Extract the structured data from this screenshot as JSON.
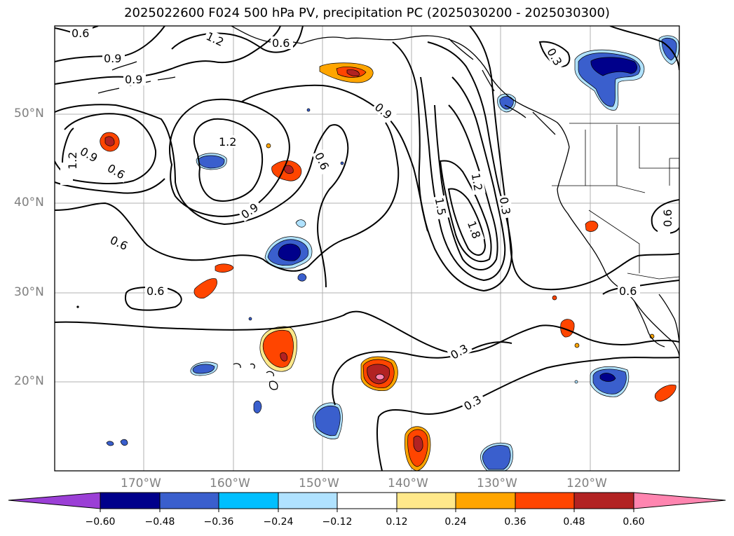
{
  "title": "2025022600 F024 500 hPa PV, precipitation PC (2025030200 - 2025030300)",
  "lat_labels": [
    "50°N",
    "40°N",
    "30°N",
    "20°N"
  ],
  "lon_labels": [
    "170°W",
    "160°W",
    "150°W",
    "140°W",
    "130°W",
    "120°W"
  ],
  "contour_labels": [
    "0.6",
    "0.9",
    "0.9",
    "1.2",
    "0.6",
    "1.2",
    "0.9",
    "0.6",
    "1.2",
    "0.9",
    "0.6",
    "0.6",
    "0.6",
    "0.9",
    "0.6",
    "1.5",
    "1.2",
    "1.8",
    "0.3",
    "0.3",
    "0.3",
    "0.3",
    "0.6",
    "0.6"
  ],
  "colorbar": {
    "colors": [
      "#9b3fd6",
      "#00008b",
      "#3a5fcd",
      "#00bfff",
      "#b0e2ff",
      "#ffffff",
      "#ffe88a",
      "#ffa500",
      "#ff4500",
      "#b22222",
      "#ff85b0"
    ],
    "tick_labels": [
      "−0.60",
      "−0.48",
      "−0.36",
      "−0.24",
      "−0.12",
      "0.12",
      "0.24",
      "0.36",
      "0.48",
      "0.60"
    ]
  }
}
